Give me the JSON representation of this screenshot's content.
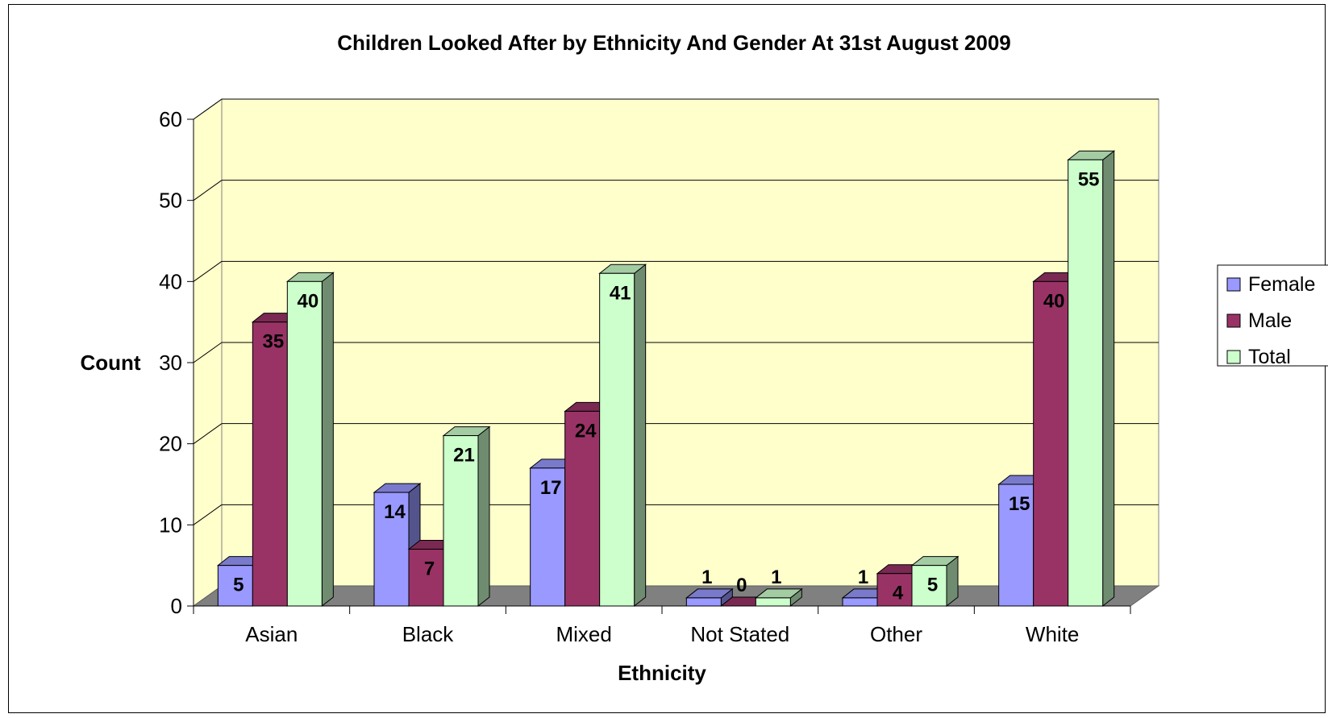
{
  "chart_data": {
    "type": "bar",
    "title": "Children Looked After by Ethnicity And Gender At 31st August 2009",
    "xlabel": "Ethnicity",
    "ylabel": "Count",
    "ylim": [
      0,
      60
    ],
    "yticks": [
      0,
      10,
      20,
      30,
      40,
      50,
      60
    ],
    "categories": [
      "Asian",
      "Black",
      "Mixed",
      "Not Stated",
      "Other",
      "White"
    ],
    "series": [
      {
        "name": "Female",
        "values": [
          5,
          14,
          17,
          1,
          1,
          15
        ],
        "color": "#9999ff"
      },
      {
        "name": "Male",
        "values": [
          35,
          7,
          24,
          0,
          4,
          40
        ],
        "color": "#993366"
      },
      {
        "name": "Total",
        "values": [
          40,
          21,
          41,
          1,
          5,
          55
        ],
        "color": "#ccffcc"
      }
    ],
    "legend_position": "right",
    "grid": true,
    "plot_background": "#ffffcc",
    "floor_color": "#808080",
    "style": "3d-clustered-column"
  }
}
